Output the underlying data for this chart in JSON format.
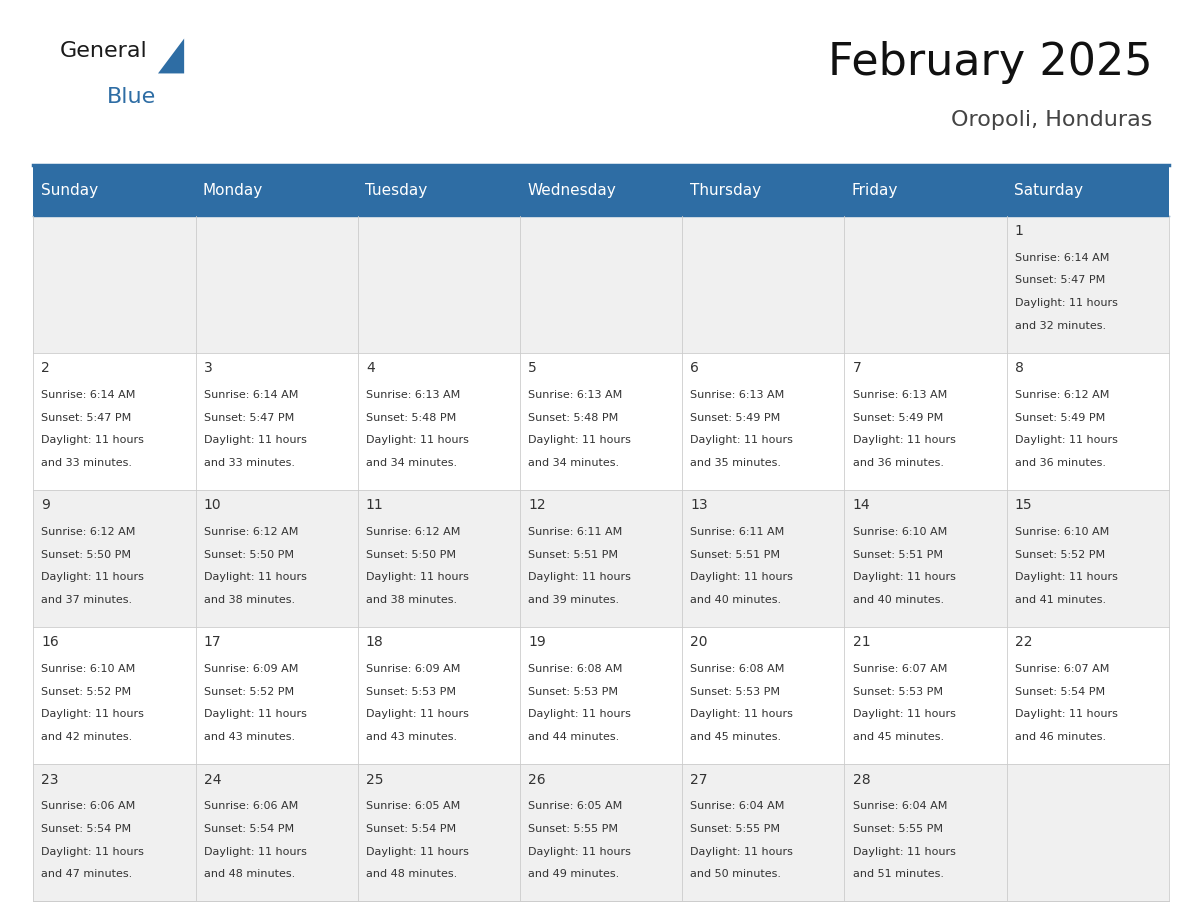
{
  "title": "February 2025",
  "subtitle": "Oropoli, Honduras",
  "header_bg": "#2E6DA4",
  "header_text_color": "#FFFFFF",
  "day_names": [
    "Sunday",
    "Monday",
    "Tuesday",
    "Wednesday",
    "Thursday",
    "Friday",
    "Saturday"
  ],
  "odd_row_bg": "#F0F0F0",
  "even_row_bg": "#FFFFFF",
  "cell_border_color": "#CCCCCC",
  "day_num_color": "#333333",
  "info_color": "#333333",
  "title_fontsize": 32,
  "subtitle_fontsize": 16,
  "header_fontsize": 11,
  "day_num_fontsize": 10,
  "cell_text_fontsize": 8,
  "logo_general_color": "#1a1a1a",
  "logo_blue_color": "#2E6DA4",
  "logo_triangle_color": "#2E6DA4",
  "calendar": [
    [
      null,
      null,
      null,
      null,
      null,
      null,
      {
        "day": 1,
        "sunrise": "6:14 AM",
        "sunset": "5:47 PM",
        "daylight": "11 hours and 32 minutes."
      }
    ],
    [
      {
        "day": 2,
        "sunrise": "6:14 AM",
        "sunset": "5:47 PM",
        "daylight": "11 hours and 33 minutes."
      },
      {
        "day": 3,
        "sunrise": "6:14 AM",
        "sunset": "5:47 PM",
        "daylight": "11 hours and 33 minutes."
      },
      {
        "day": 4,
        "sunrise": "6:13 AM",
        "sunset": "5:48 PM",
        "daylight": "11 hours and 34 minutes."
      },
      {
        "day": 5,
        "sunrise": "6:13 AM",
        "sunset": "5:48 PM",
        "daylight": "11 hours and 34 minutes."
      },
      {
        "day": 6,
        "sunrise": "6:13 AM",
        "sunset": "5:49 PM",
        "daylight": "11 hours and 35 minutes."
      },
      {
        "day": 7,
        "sunrise": "6:13 AM",
        "sunset": "5:49 PM",
        "daylight": "11 hours and 36 minutes."
      },
      {
        "day": 8,
        "sunrise": "6:12 AM",
        "sunset": "5:49 PM",
        "daylight": "11 hours and 36 minutes."
      }
    ],
    [
      {
        "day": 9,
        "sunrise": "6:12 AM",
        "sunset": "5:50 PM",
        "daylight": "11 hours and 37 minutes."
      },
      {
        "day": 10,
        "sunrise": "6:12 AM",
        "sunset": "5:50 PM",
        "daylight": "11 hours and 38 minutes."
      },
      {
        "day": 11,
        "sunrise": "6:12 AM",
        "sunset": "5:50 PM",
        "daylight": "11 hours and 38 minutes."
      },
      {
        "day": 12,
        "sunrise": "6:11 AM",
        "sunset": "5:51 PM",
        "daylight": "11 hours and 39 minutes."
      },
      {
        "day": 13,
        "sunrise": "6:11 AM",
        "sunset": "5:51 PM",
        "daylight": "11 hours and 40 minutes."
      },
      {
        "day": 14,
        "sunrise": "6:10 AM",
        "sunset": "5:51 PM",
        "daylight": "11 hours and 40 minutes."
      },
      {
        "day": 15,
        "sunrise": "6:10 AM",
        "sunset": "5:52 PM",
        "daylight": "11 hours and 41 minutes."
      }
    ],
    [
      {
        "day": 16,
        "sunrise": "6:10 AM",
        "sunset": "5:52 PM",
        "daylight": "11 hours and 42 minutes."
      },
      {
        "day": 17,
        "sunrise": "6:09 AM",
        "sunset": "5:52 PM",
        "daylight": "11 hours and 43 minutes."
      },
      {
        "day": 18,
        "sunrise": "6:09 AM",
        "sunset": "5:53 PM",
        "daylight": "11 hours and 43 minutes."
      },
      {
        "day": 19,
        "sunrise": "6:08 AM",
        "sunset": "5:53 PM",
        "daylight": "11 hours and 44 minutes."
      },
      {
        "day": 20,
        "sunrise": "6:08 AM",
        "sunset": "5:53 PM",
        "daylight": "11 hours and 45 minutes."
      },
      {
        "day": 21,
        "sunrise": "6:07 AM",
        "sunset": "5:53 PM",
        "daylight": "11 hours and 45 minutes."
      },
      {
        "day": 22,
        "sunrise": "6:07 AM",
        "sunset": "5:54 PM",
        "daylight": "11 hours and 46 minutes."
      }
    ],
    [
      {
        "day": 23,
        "sunrise": "6:06 AM",
        "sunset": "5:54 PM",
        "daylight": "11 hours and 47 minutes."
      },
      {
        "day": 24,
        "sunrise": "6:06 AM",
        "sunset": "5:54 PM",
        "daylight": "11 hours and 48 minutes."
      },
      {
        "day": 25,
        "sunrise": "6:05 AM",
        "sunset": "5:54 PM",
        "daylight": "11 hours and 48 minutes."
      },
      {
        "day": 26,
        "sunrise": "6:05 AM",
        "sunset": "5:55 PM",
        "daylight": "11 hours and 49 minutes."
      },
      {
        "day": 27,
        "sunrise": "6:04 AM",
        "sunset": "5:55 PM",
        "daylight": "11 hours and 50 minutes."
      },
      {
        "day": 28,
        "sunrise": "6:04 AM",
        "sunset": "5:55 PM",
        "daylight": "11 hours and 51 minutes."
      },
      null
    ]
  ]
}
